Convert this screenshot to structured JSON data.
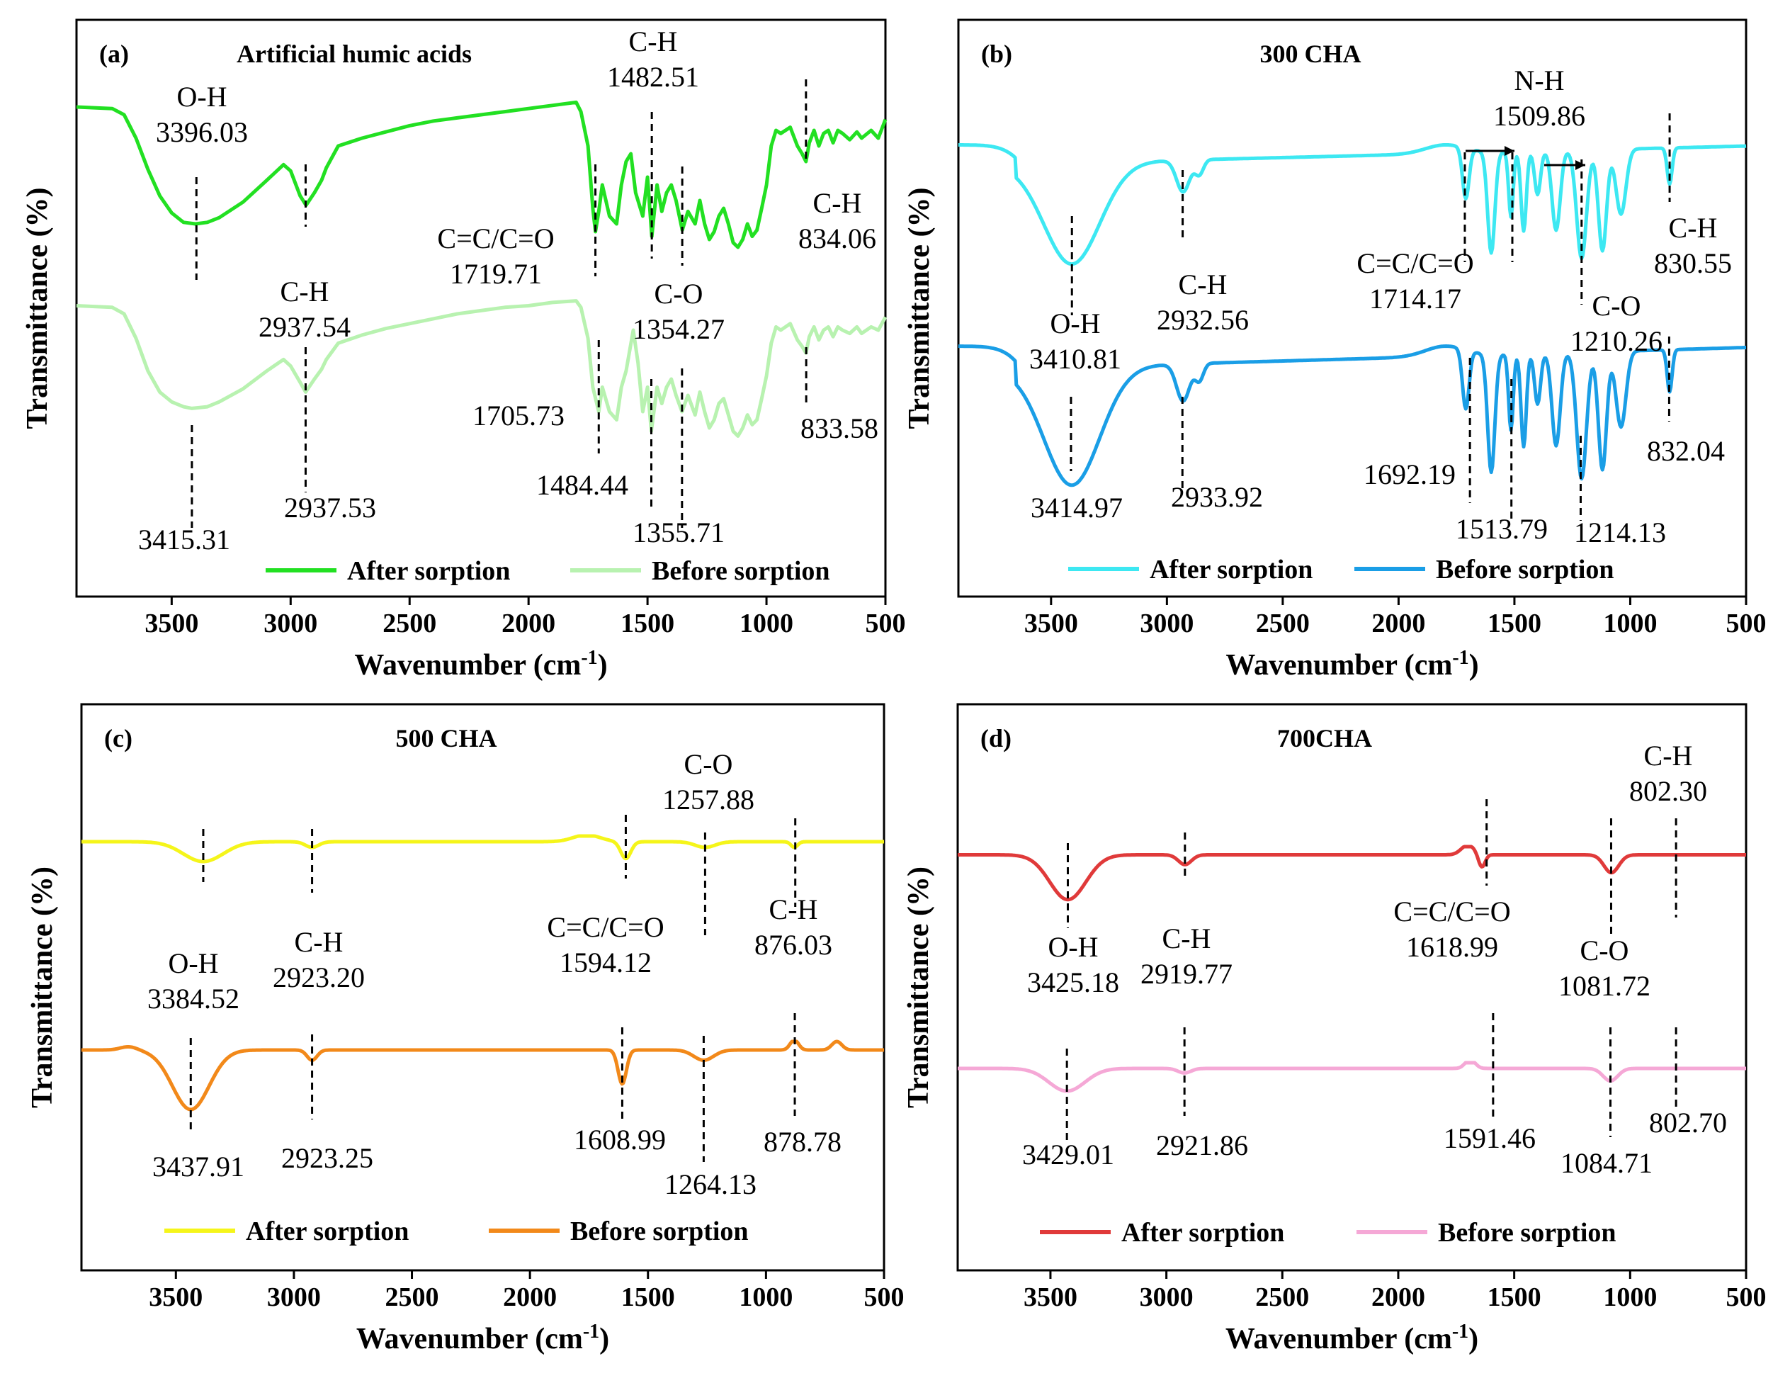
{
  "chart_data": [
    {
      "type": "line",
      "panel": "(a)",
      "title": "Artificial humic acids",
      "xlabel": "Wavenumber (cm",
      "xlabel_sup": "-1",
      "xlabel_end": ")",
      "ylabel": "Transmittance (%)",
      "xlim": [
        3900,
        500
      ],
      "x_ticks": [
        "3500",
        "3000",
        "2500",
        "2000",
        "1500",
        "1000",
        "500"
      ],
      "x_tick_values": [
        3500,
        3000,
        2500,
        2000,
        1500,
        1000,
        500
      ],
      "series": [
        {
          "name": "After sorption",
          "color": "#22e022",
          "offset": 0.0,
          "baseline": [
            [
              3900,
              0.05
            ],
            [
              3750,
              0.06
            ],
            [
              3700,
              0.1
            ],
            [
              3650,
              0.25
            ],
            [
              3600,
              0.45
            ],
            [
              3550,
              0.62
            ],
            [
              3500,
              0.73
            ],
            [
              3450,
              0.79
            ],
            [
              3400,
              0.8
            ],
            [
              3350,
              0.79
            ],
            [
              3300,
              0.76
            ],
            [
              3200,
              0.66
            ],
            [
              3100,
              0.52
            ],
            [
              3030,
              0.42
            ],
            [
              3000,
              0.46
            ],
            [
              2960,
              0.62
            ],
            [
              2935,
              0.68
            ],
            [
              2900,
              0.6
            ],
            [
              2870,
              0.52
            ],
            [
              2850,
              0.44
            ],
            [
              2800,
              0.3
            ],
            [
              2700,
              0.25
            ],
            [
              2600,
              0.21
            ],
            [
              2500,
              0.17
            ],
            [
              2400,
              0.14
            ],
            [
              2300,
              0.12
            ],
            [
              2200,
              0.1
            ],
            [
              2100,
              0.08
            ],
            [
              2000,
              0.06
            ],
            [
              1900,
              0.04
            ],
            [
              1800,
              0.02
            ],
            [
              1780,
              0.08
            ],
            [
              1750,
              0.3
            ],
            [
              1730,
              0.7
            ],
            [
              1719,
              0.85
            ],
            [
              1705,
              0.72
            ],
            [
              1690,
              0.55
            ],
            [
              1660,
              0.75
            ],
            [
              1630,
              0.8
            ],
            [
              1610,
              0.55
            ],
            [
              1590,
              0.4
            ],
            [
              1570,
              0.35
            ],
            [
              1550,
              0.6
            ],
            [
              1520,
              0.75
            ],
            [
              1500,
              0.5
            ],
            [
              1482,
              0.88
            ],
            [
              1460,
              0.55
            ],
            [
              1440,
              0.72
            ],
            [
              1420,
              0.6
            ],
            [
              1400,
              0.55
            ],
            [
              1380,
              0.65
            ],
            [
              1354,
              0.84
            ],
            [
              1330,
              0.72
            ],
            [
              1300,
              0.8
            ],
            [
              1280,
              0.65
            ],
            [
              1260,
              0.8
            ],
            [
              1240,
              0.9
            ],
            [
              1220,
              0.85
            ],
            [
              1200,
              0.75
            ],
            [
              1180,
              0.7
            ],
            [
              1160,
              0.8
            ],
            [
              1140,
              0.92
            ],
            [
              1120,
              0.95
            ],
            [
              1100,
              0.9
            ],
            [
              1080,
              0.8
            ],
            [
              1060,
              0.88
            ],
            [
              1040,
              0.84
            ],
            [
              1020,
              0.7
            ],
            [
              1000,
              0.55
            ],
            [
              980,
              0.3
            ],
            [
              960,
              0.2
            ],
            [
              940,
              0.22
            ],
            [
              900,
              0.18
            ],
            [
              870,
              0.3
            ],
            [
              850,
              0.35
            ],
            [
              834,
              0.4
            ],
            [
              820,
              0.28
            ],
            [
              800,
              0.2
            ],
            [
              780,
              0.3
            ],
            [
              760,
              0.22
            ],
            [
              740,
              0.2
            ],
            [
              720,
              0.28
            ],
            [
              700,
              0.2
            ],
            [
              680,
              0.22
            ],
            [
              650,
              0.26
            ],
            [
              620,
              0.21
            ],
            [
              600,
              0.25
            ],
            [
              560,
              0.2
            ],
            [
              530,
              0.25
            ],
            [
              500,
              0.13
            ]
          ]
        },
        {
          "name": "Before sorption",
          "color": "#b8f2b0",
          "offset": 0.0,
          "baseline": [
            [
              3900,
              0.05
            ],
            [
              3750,
              0.06
            ],
            [
              3700,
              0.1
            ],
            [
              3650,
              0.25
            ],
            [
              3600,
              0.45
            ],
            [
              3550,
              0.58
            ],
            [
              3500,
              0.64
            ],
            [
              3450,
              0.67
            ],
            [
              3415,
              0.68
            ],
            [
              3350,
              0.67
            ],
            [
              3300,
              0.64
            ],
            [
              3200,
              0.56
            ],
            [
              3100,
              0.45
            ],
            [
              3030,
              0.38
            ],
            [
              3000,
              0.42
            ],
            [
              2960,
              0.52
            ],
            [
              2937,
              0.58
            ],
            [
              2900,
              0.5
            ],
            [
              2870,
              0.44
            ],
            [
              2850,
              0.38
            ],
            [
              2800,
              0.28
            ],
            [
              2700,
              0.23
            ],
            [
              2600,
              0.19
            ],
            [
              2500,
              0.16
            ],
            [
              2400,
              0.13
            ],
            [
              2300,
              0.1
            ],
            [
              2200,
              0.08
            ],
            [
              2100,
              0.06
            ],
            [
              2000,
              0.05
            ],
            [
              1900,
              0.03
            ],
            [
              1800,
              0.02
            ],
            [
              1780,
              0.06
            ],
            [
              1750,
              0.25
            ],
            [
              1730,
              0.55
            ],
            [
              1705,
              0.7
            ],
            [
              1690,
              0.55
            ],
            [
              1660,
              0.7
            ],
            [
              1630,
              0.75
            ],
            [
              1610,
              0.55
            ],
            [
              1590,
              0.45
            ],
            [
              1560,
              0.2
            ],
            [
              1540,
              0.4
            ],
            [
              1520,
              0.7
            ],
            [
              1500,
              0.55
            ],
            [
              1484,
              0.82
            ],
            [
              1460,
              0.55
            ],
            [
              1440,
              0.65
            ],
            [
              1420,
              0.55
            ],
            [
              1400,
              0.5
            ],
            [
              1380,
              0.6
            ],
            [
              1355,
              0.7
            ],
            [
              1330,
              0.6
            ],
            [
              1300,
              0.72
            ],
            [
              1280,
              0.58
            ],
            [
              1260,
              0.7
            ],
            [
              1240,
              0.8
            ],
            [
              1220,
              0.75
            ],
            [
              1200,
              0.65
            ],
            [
              1180,
              0.62
            ],
            [
              1160,
              0.72
            ],
            [
              1140,
              0.82
            ],
            [
              1120,
              0.85
            ],
            [
              1100,
              0.8
            ],
            [
              1080,
              0.72
            ],
            [
              1060,
              0.78
            ],
            [
              1040,
              0.75
            ],
            [
              1020,
              0.62
            ],
            [
              1000,
              0.48
            ],
            [
              980,
              0.28
            ],
            [
              960,
              0.18
            ],
            [
              940,
              0.2
            ],
            [
              900,
              0.16
            ],
            [
              870,
              0.26
            ],
            [
              850,
              0.3
            ],
            [
              834,
              0.34
            ],
            [
              820,
              0.24
            ],
            [
              800,
              0.18
            ],
            [
              780,
              0.26
            ],
            [
              760,
              0.2
            ],
            [
              740,
              0.18
            ],
            [
              720,
              0.24
            ],
            [
              700,
              0.18
            ],
            [
              680,
              0.2
            ],
            [
              650,
              0.22
            ],
            [
              620,
              0.18
            ],
            [
              600,
              0.22
            ],
            [
              560,
              0.18
            ],
            [
              530,
              0.2
            ],
            [
              500,
              0.12
            ]
          ]
        }
      ],
      "annotations": [
        {
          "lines": [
            "O-H",
            "3396.03"
          ]
        },
        {
          "lines": [
            "C-H",
            "2937.54"
          ]
        },
        {
          "lines": [
            "C=C/C=O",
            "1719.71"
          ]
        },
        {
          "lines": [
            "C-H",
            "1482.51"
          ]
        },
        {
          "lines": [
            "C-O",
            "1354.27"
          ]
        },
        {
          "lines": [
            "C-H",
            "834.06"
          ]
        },
        {
          "lines": [
            "3415.31"
          ]
        },
        {
          "lines": [
            "2937.53"
          ]
        },
        {
          "lines": [
            "1705.73"
          ]
        },
        {
          "lines": [
            "1484.44"
          ]
        },
        {
          "lines": [
            "1355.71"
          ]
        },
        {
          "lines": [
            "833.58"
          ]
        }
      ]
    },
    {
      "type": "line",
      "panel": "(b)",
      "title": "300 CHA",
      "xlabel": "Wavenumber (cm",
      "xlabel_sup": "-1",
      "xlabel_end": ")",
      "ylabel": "Transmittance (%)",
      "xlim": [
        3900,
        500
      ],
      "x_ticks": [
        "3500",
        "3000",
        "2500",
        "2000",
        "1500",
        "1000",
        "500"
      ],
      "x_tick_values": [
        3500,
        3000,
        2500,
        2000,
        1500,
        1000,
        500
      ],
      "series": [
        {
          "name": "After sorption",
          "color": "#3de8f2"
        },
        {
          "name": "Before sorption",
          "color": "#1a9ee6"
        }
      ],
      "annotations": [
        {
          "lines": [
            "O-H",
            "3410.81"
          ]
        },
        {
          "lines": [
            "C-H",
            "2932.56"
          ]
        },
        {
          "lines": [
            "C=C/C=O",
            "1714.17"
          ]
        },
        {
          "lines": [
            "N-H",
            "1509.86"
          ]
        },
        {
          "lines": [
            "C-O",
            "1210.26"
          ]
        },
        {
          "lines": [
            "C-H",
            "830.55"
          ]
        },
        {
          "lines": [
            "3414.97"
          ]
        },
        {
          "lines": [
            "2933.92"
          ]
        },
        {
          "lines": [
            "1692.19"
          ]
        },
        {
          "lines": [
            "1513.79"
          ]
        },
        {
          "lines": [
            "1214.13"
          ]
        },
        {
          "lines": [
            "832.04"
          ]
        }
      ]
    },
    {
      "type": "line",
      "panel": "(c)",
      "title": "500 CHA",
      "xlabel": "Wavenumber (cm",
      "xlabel_sup": "-1",
      "xlabel_end": ")",
      "ylabel": "Transmittance (%)",
      "xlim": [
        3900,
        500
      ],
      "x_ticks": [
        "3500",
        "3000",
        "2500",
        "2000",
        "1500",
        "1000",
        "500"
      ],
      "x_tick_values": [
        3500,
        3000,
        2500,
        2000,
        1500,
        1000,
        500
      ],
      "series": [
        {
          "name": "After sorption",
          "color": "#f5f51a"
        },
        {
          "name": "Before sorption",
          "color": "#f2891a"
        }
      ],
      "annotations": [
        {
          "lines": [
            "O-H",
            "3384.52"
          ]
        },
        {
          "lines": [
            "C-H",
            "2923.20"
          ]
        },
        {
          "lines": [
            "C=C/C=O",
            "1594.12"
          ]
        },
        {
          "lines": [
            "C-O",
            "1257.88"
          ]
        },
        {
          "lines": [
            "C-H",
            "876.03"
          ]
        },
        {
          "lines": [
            "3437.91"
          ]
        },
        {
          "lines": [
            "2923.25"
          ]
        },
        {
          "lines": [
            "1608.99"
          ]
        },
        {
          "lines": [
            "1264.13"
          ]
        },
        {
          "lines": [
            "878.78"
          ]
        }
      ]
    },
    {
      "type": "line",
      "panel": "(d)",
      "title": "700CHA",
      "xlabel": "Wavenumber (cm",
      "xlabel_sup": "-1",
      "xlabel_end": ")",
      "ylabel": "Transmittance (%)",
      "xlim": [
        3900,
        500
      ],
      "x_ticks": [
        "3500",
        "3000",
        "2500",
        "2000",
        "1500",
        "1000",
        "500"
      ],
      "x_tick_values": [
        3500,
        3000,
        2500,
        2000,
        1500,
        1000,
        500
      ],
      "series": [
        {
          "name": "After  sorption",
          "color": "#e03a3a"
        },
        {
          "name": "Before sorption",
          "color": "#f5a8d6"
        }
      ],
      "annotations": [
        {
          "lines": [
            "O-H",
            "3425.18"
          ]
        },
        {
          "lines": [
            "C-H",
            "2919.77"
          ]
        },
        {
          "lines": [
            "C=C/C=O",
            "1618.99"
          ]
        },
        {
          "lines": [
            "C-O",
            "1081.72"
          ]
        },
        {
          "lines": [
            "C-H",
            "802.30"
          ]
        },
        {
          "lines": [
            "3429.01"
          ]
        },
        {
          "lines": [
            "2921.86"
          ]
        },
        {
          "lines": [
            "1591.46"
          ]
        },
        {
          "lines": [
            "1084.71"
          ]
        },
        {
          "lines": [
            "802.70"
          ]
        }
      ]
    }
  ]
}
